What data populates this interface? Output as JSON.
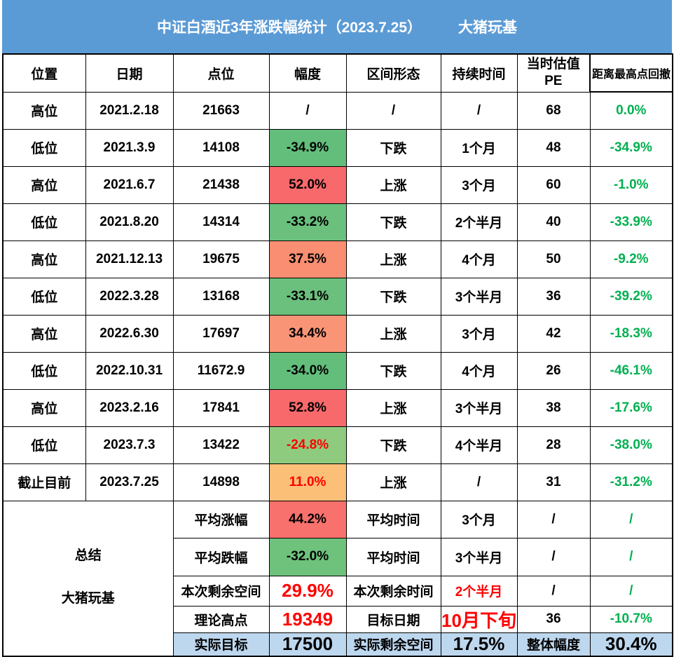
{
  "title": {
    "main": "中证白酒近3年涨跌幅统计（2023.7.25）",
    "author": "大猪玩基"
  },
  "colors": {
    "title_bg": "#5B9BD5",
    "title_text": "#FFFFFF",
    "green_text": "#00B050",
    "red_text": "#FF0000",
    "highlight_row_bg": "#BDD7EE",
    "scale_red": "#F8696B",
    "scale_salmon": "#F98E72",
    "scale_orange": "#FBBF77",
    "scale_green": "#63BE7B",
    "scale_green_light": "#8FCB7E"
  },
  "table": {
    "rows": [
      {
        "cells": [
          {
            "t": "位置",
            "name": "col-header-position"
          },
          {
            "t": "日期",
            "name": "col-header-date"
          },
          {
            "t": "点位",
            "name": "col-header-points"
          },
          {
            "t": "幅度",
            "name": "col-header-change"
          },
          {
            "t": "区间形态",
            "name": "col-header-trend"
          },
          {
            "t": "持续时间",
            "name": "col-header-duration"
          },
          {
            "lines": [
              "当时估值",
              "PE"
            ],
            "name": "col-header-pe"
          },
          {
            "t": "距离最高点回撤",
            "name": "col-header-drawdown",
            "cls": "small thick"
          }
        ]
      },
      {
        "cells": [
          {
            "t": "高位"
          },
          {
            "t": "2021.2.18"
          },
          {
            "t": "21663"
          },
          {
            "t": "/"
          },
          {
            "t": "/"
          },
          {
            "t": "/"
          },
          {
            "t": "68"
          },
          {
            "t": "0.0%",
            "fg": "#00B050"
          }
        ]
      },
      {
        "cells": [
          {
            "t": "低位"
          },
          {
            "t": "2021.3.9"
          },
          {
            "t": "14108"
          },
          {
            "t": "-34.9%",
            "bg": "#63BE7B"
          },
          {
            "t": "下跌"
          },
          {
            "t": "1个月"
          },
          {
            "t": "48"
          },
          {
            "t": "-34.9%",
            "fg": "#00B050"
          }
        ]
      },
      {
        "cells": [
          {
            "t": "高位"
          },
          {
            "t": "2021.6.7"
          },
          {
            "t": "21438"
          },
          {
            "t": "52.0%",
            "bg": "#F8696B"
          },
          {
            "t": "上涨"
          },
          {
            "t": "3个月"
          },
          {
            "t": "60"
          },
          {
            "t": "-1.0%",
            "fg": "#00B050"
          }
        ]
      },
      {
        "cells": [
          {
            "t": "低位"
          },
          {
            "t": "2021.8.20"
          },
          {
            "t": "14314"
          },
          {
            "t": "-33.2%",
            "bg": "#6AC07C"
          },
          {
            "t": "下跌"
          },
          {
            "t": "2个半月"
          },
          {
            "t": "40"
          },
          {
            "t": "-33.9%",
            "fg": "#00B050"
          }
        ]
      },
      {
        "cells": [
          {
            "t": "高位"
          },
          {
            "t": "2021.12.13"
          },
          {
            "t": "19675"
          },
          {
            "t": "37.5%",
            "bg": "#F98E72"
          },
          {
            "t": "上涨"
          },
          {
            "t": "4个月"
          },
          {
            "t": "50"
          },
          {
            "t": "-9.2%",
            "fg": "#00B050"
          }
        ]
      },
      {
        "cells": [
          {
            "t": "低位"
          },
          {
            "t": "2022.3.28"
          },
          {
            "t": "13168"
          },
          {
            "t": "-33.1%",
            "bg": "#6AC07C"
          },
          {
            "t": "下跌"
          },
          {
            "t": "3个半月"
          },
          {
            "t": "36"
          },
          {
            "t": "-39.2%",
            "fg": "#00B050"
          }
        ]
      },
      {
        "cells": [
          {
            "t": "高位"
          },
          {
            "t": "2022.6.30"
          },
          {
            "t": "17697"
          },
          {
            "t": "34.4%",
            "bg": "#F99576"
          },
          {
            "t": "上涨"
          },
          {
            "t": "3个月"
          },
          {
            "t": "42"
          },
          {
            "t": "-18.3%",
            "fg": "#00B050"
          }
        ]
      },
      {
        "cells": [
          {
            "t": "低位"
          },
          {
            "t": "2022.10.31"
          },
          {
            "t": "11672.9"
          },
          {
            "t": "-34.0%",
            "bg": "#63BE7B"
          },
          {
            "t": "下跌"
          },
          {
            "t": "4个月"
          },
          {
            "t": "26"
          },
          {
            "t": "-46.1%",
            "fg": "#00B050"
          }
        ]
      },
      {
        "cells": [
          {
            "t": "高位"
          },
          {
            "t": "2023.2.16"
          },
          {
            "t": "17841"
          },
          {
            "t": "52.8%",
            "bg": "#F8696B"
          },
          {
            "t": "上涨"
          },
          {
            "t": "3个半月"
          },
          {
            "t": "38"
          },
          {
            "t": "-17.6%",
            "fg": "#00B050"
          }
        ]
      },
      {
        "cells": [
          {
            "t": "低位"
          },
          {
            "t": "2023.7.3"
          },
          {
            "t": "13422"
          },
          {
            "t": "-24.8%",
            "bg": "#8FCB7E",
            "fg": "#FF0000"
          },
          {
            "t": "下跌"
          },
          {
            "t": "4个半月"
          },
          {
            "t": "28"
          },
          {
            "t": "-38.0%",
            "fg": "#00B050"
          }
        ]
      },
      {
        "cells": [
          {
            "t": "截止目前"
          },
          {
            "t": "2023.7.25"
          },
          {
            "t": "14898"
          },
          {
            "t": "11.0%",
            "bg": "#FBBF77",
            "fg": "#FF0000"
          },
          {
            "t": "上涨"
          },
          {
            "t": "/"
          },
          {
            "t": "31"
          },
          {
            "t": "-31.2%",
            "fg": "#00B050"
          }
        ]
      },
      {
        "cells": [
          {
            "lines": [
              "总结",
              "大猪玩基"
            ],
            "rs": 5,
            "cs": 2,
            "name": "summary-label-cell",
            "stack": "summary-stack"
          },
          {
            "t": "平均涨幅",
            "name": "summary-avg-gain-label"
          },
          {
            "t": "44.2%",
            "bg": "#F8716C",
            "name": "summary-avg-gain-value"
          },
          {
            "t": "平均时间",
            "name": "summary-avg-time-label"
          },
          {
            "t": "3个月",
            "name": "summary-avg-time-value"
          },
          {
            "t": "/",
            "name": "summary-pe-cell"
          },
          {
            "t": "/",
            "fg": "#00B050",
            "name": "summary-drawdown-cell"
          }
        ]
      },
      {
        "cells": [
          {
            "t": "平均跌幅",
            "name": "summary-avg-loss-label"
          },
          {
            "t": "-32.0%",
            "bg": "#6EC27C",
            "name": "summary-avg-loss-value"
          },
          {
            "t": "平均时间",
            "name": "summary-avg-time-label"
          },
          {
            "t": "3个半月",
            "name": "summary-avg-time-value"
          },
          {
            "t": "/",
            "name": "summary-pe-cell"
          },
          {
            "t": "/",
            "fg": "#00B050",
            "name": "summary-drawdown-cell"
          }
        ]
      },
      {
        "cells": [
          {
            "t": "本次剩余空间",
            "name": "remaining-space-label"
          },
          {
            "t": "29.9%",
            "fg": "#FF0000",
            "cls": "big",
            "name": "remaining-space-value"
          },
          {
            "t": "本次剩余时间",
            "name": "remaining-time-label"
          },
          {
            "t": "2个半月",
            "fg": "#FF0000",
            "name": "remaining-time-value"
          },
          {
            "t": "/",
            "name": "summary-pe-cell"
          },
          {
            "t": "/",
            "fg": "#00B050",
            "name": "summary-drawdown-cell"
          }
        ]
      },
      {
        "cells": [
          {
            "t": "理论高点",
            "name": "theoretical-high-label"
          },
          {
            "t": "19349",
            "fg": "#FF0000",
            "cls": "big",
            "name": "theoretical-high-value"
          },
          {
            "t": "目标日期",
            "name": "target-date-label"
          },
          {
            "t": "10月下旬",
            "fg": "#FF0000",
            "cls": "big",
            "name": "target-date-value"
          },
          {
            "t": "36",
            "name": "summary-pe-cell"
          },
          {
            "t": "-10.7%",
            "fg": "#00B050",
            "name": "summary-drawdown-cell"
          }
        ]
      },
      {
        "cells": [
          {
            "t": "实际目标",
            "bg": "#BDD7EE",
            "name": "actual-target-label"
          },
          {
            "t": "17500",
            "bg": "#BDD7EE",
            "cls": "big",
            "name": "actual-target-value"
          },
          {
            "t": "实际剩余空间",
            "bg": "#BDD7EE",
            "name": "actual-remaining-label"
          },
          {
            "t": "17.5%",
            "bg": "#BDD7EE",
            "cls": "big",
            "name": "actual-remaining-value"
          },
          {
            "t": "整体幅度",
            "bg": "#BDD7EE",
            "name": "overall-change-label"
          },
          {
            "t": "30.4%",
            "bg": "#BDD7EE",
            "cls": "big",
            "name": "overall-change-value"
          }
        ]
      }
    ]
  }
}
